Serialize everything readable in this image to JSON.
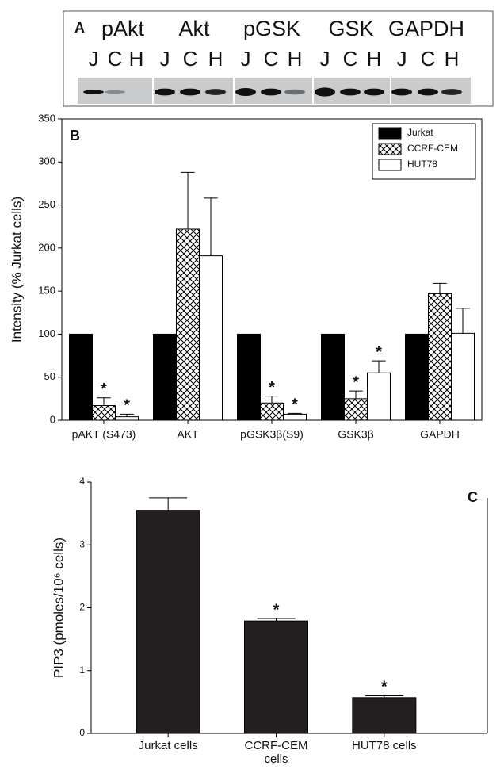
{
  "blot": {
    "panel_label": "A",
    "proteins": [
      "pAkt",
      "Akt",
      "pGSK",
      "GSK",
      "GAPDH"
    ],
    "lanes": [
      "J",
      "C",
      "H"
    ]
  },
  "chart_data": [
    {
      "type": "bar",
      "panel_label": "B",
      "y_label": "Intensity (% Jurkat cells)",
      "categories": [
        "pAKT (S473)",
        "AKT",
        "pGSK3β(S9)",
        "GSK3β",
        "GAPDH"
      ],
      "series": [
        {
          "name": "Jurkat",
          "color": "#000000",
          "values": [
            100,
            100,
            100,
            100,
            100
          ]
        },
        {
          "name": "CCRF-CEM",
          "color": "#000000",
          "pattern": "crosshatch",
          "values": [
            17,
            222,
            20,
            25,
            147
          ],
          "errors": [
            9,
            66,
            8,
            9,
            12
          ],
          "significance": [
            "*",
            null,
            "*",
            "*",
            null
          ]
        },
        {
          "name": "HUT78",
          "color": "#ffffff",
          "values": [
            4,
            191,
            7,
            55,
            101
          ],
          "errors": [
            3,
            67,
            1,
            14,
            29
          ],
          "significance": [
            "*",
            null,
            "*",
            "*",
            null
          ]
        }
      ],
      "ylim": [
        0,
        350
      ],
      "yticks": [
        0,
        50,
        100,
        150,
        200,
        250,
        300,
        350
      ],
      "legend": "top-right"
    },
    {
      "type": "bar",
      "panel_label": "C",
      "y_label": "PIP3 (pmoles/10⁶ cells)",
      "categories": [
        "Jurkat cells",
        "CCRF-CEM cells",
        "HUT78 cells"
      ],
      "series": [
        {
          "color": "#231f20",
          "values": [
            3.55,
            1.79,
            0.57
          ],
          "errors": [
            0.2,
            0.04,
            0.03
          ],
          "significance": [
            null,
            "*",
            "*"
          ]
        }
      ],
      "ylim": [
        0,
        4
      ],
      "yticks": [
        0,
        1,
        2,
        3,
        4
      ]
    }
  ]
}
